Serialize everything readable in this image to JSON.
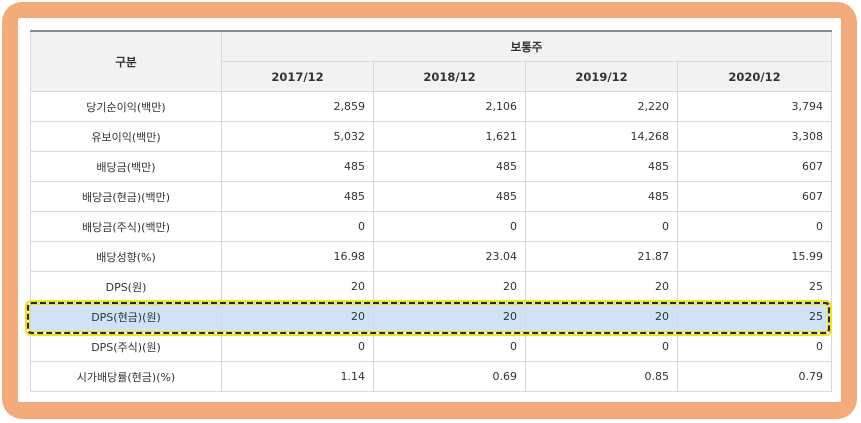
{
  "table": {
    "header": {
      "category_label": "구분",
      "group_label": "보통주",
      "years": [
        "2017/12",
        "2018/12",
        "2019/12",
        "2020/12"
      ]
    },
    "rows": [
      {
        "label": "당기순이익(백만)",
        "values": [
          "2,859",
          "2,106",
          "2,220",
          "3,794"
        ]
      },
      {
        "label": "유보이익(백만)",
        "values": [
          "5,032",
          "1,621",
          "14,268",
          "3,308"
        ]
      },
      {
        "label": "배당금(백만)",
        "values": [
          "485",
          "485",
          "485",
          "607"
        ]
      },
      {
        "label": "배당금(현금)(백만)",
        "values": [
          "485",
          "485",
          "485",
          "607"
        ]
      },
      {
        "label": "배당금(주식)(백만)",
        "values": [
          "0",
          "0",
          "0",
          "0"
        ]
      },
      {
        "label": "배당성향(%)",
        "values": [
          "16.98",
          "23.04",
          "21.87",
          "15.99"
        ]
      },
      {
        "label": "DPS(원)",
        "values": [
          "20",
          "20",
          "20",
          "25"
        ]
      },
      {
        "label": "DPS(현금)(원)",
        "values": [
          "20",
          "20",
          "20",
          "25"
        ],
        "highlighted": true
      },
      {
        "label": "DPS(주식)(원)",
        "values": [
          "0",
          "0",
          "0",
          "0"
        ]
      },
      {
        "label": "시가배당률(현금)(%)",
        "values": [
          "1.14",
          "0.69",
          "0.85",
          "0.79"
        ]
      }
    ]
  },
  "colors": {
    "frame": "#f4ab7c",
    "highlight_row": "#cfe2f8",
    "highlight_border_dash": "#2a2a2a",
    "highlight_border_glow": "#f2e21a",
    "header_bg": "#f2f2f2"
  }
}
